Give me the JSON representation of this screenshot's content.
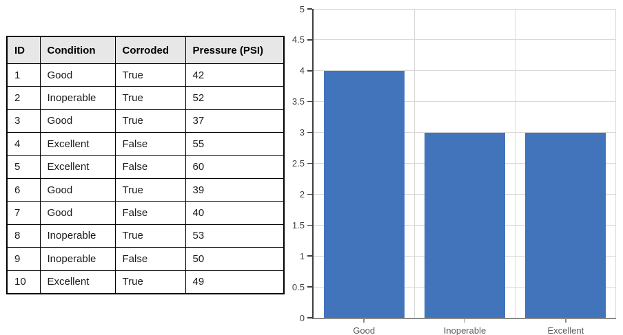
{
  "table": {
    "columns": [
      "ID",
      "Condition",
      "Corroded",
      "Pressure (PSI)"
    ],
    "rows": [
      [
        "1",
        "Good",
        "True",
        "42"
      ],
      [
        "2",
        "Inoperable",
        "True",
        "52"
      ],
      [
        "3",
        "Good",
        "True",
        "37"
      ],
      [
        "4",
        "Excellent",
        "False",
        "55"
      ],
      [
        "5",
        "Excellent",
        "False",
        "60"
      ],
      [
        "6",
        "Good",
        "True",
        "39"
      ],
      [
        "7",
        "Good",
        "False",
        "40"
      ],
      [
        "8",
        "Inoperable",
        "True",
        "53"
      ],
      [
        "9",
        "Inoperable",
        "False",
        "50"
      ],
      [
        "10",
        "Excellent",
        "True",
        "49"
      ]
    ],
    "header_bg": "#E7E7E7",
    "border_color": "#000000"
  },
  "chart_data": {
    "type": "bar",
    "title": "",
    "categories": [
      "Good",
      "Inoperable",
      "Excellent"
    ],
    "values": [
      4,
      3,
      3
    ],
    "xlabel": "",
    "ylabel": "",
    "ylim": [
      0,
      5
    ],
    "yticks": [
      "0",
      "0.5",
      "1",
      "1.5",
      "2",
      "2.5",
      "3",
      "3.5",
      "4",
      "4.5",
      "5"
    ],
    "grid": true,
    "legend": false,
    "bar_color": "#4274BC",
    "gridline_color": "#D9D9D9",
    "yaxis_color": "#3F3F3F",
    "xaxis_color": "#8A8A8A",
    "ytick_label_color": "#404040",
    "xtick_label_color": "#595959"
  }
}
